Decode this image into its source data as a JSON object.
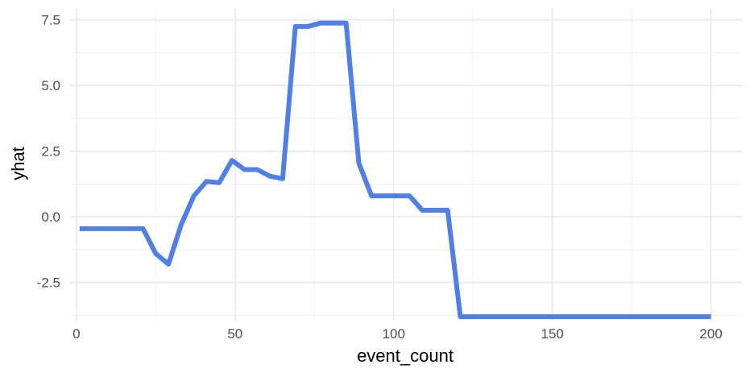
{
  "chart_data": {
    "type": "line",
    "title": "",
    "xlabel": "event_count",
    "ylabel": "yhat",
    "xlim": [
      -2,
      210
    ],
    "ylim": [
      -3.95,
      7.95
    ],
    "x_ticks": [
      0,
      50,
      100,
      150,
      200
    ],
    "x_tick_labels": [
      "0",
      "50",
      "100",
      "150",
      "200"
    ],
    "x_minor_ticks": [
      25,
      75,
      125,
      175
    ],
    "y_ticks": [
      -2.5,
      0.0,
      2.5,
      5.0,
      7.5
    ],
    "y_tick_labels": [
      "-2.5",
      "0.0",
      "2.5",
      "5.0",
      "7.5"
    ],
    "y_minor_ticks": [
      -3.75,
      -1.25,
      1.25,
      3.75,
      6.25
    ],
    "grid": true,
    "legend": "none",
    "series": [
      {
        "color": "#5080e6",
        "x": [
          1,
          5,
          9,
          13,
          17,
          21,
          25,
          29,
          33,
          37,
          41,
          45,
          49,
          53,
          57,
          61,
          65,
          69,
          73,
          77,
          81,
          85,
          89,
          93,
          97,
          101,
          105,
          109,
          113,
          117,
          121,
          125,
          130,
          140,
          150,
          160,
          170,
          180,
          190,
          200
        ],
        "y": [
          -0.45,
          -0.45,
          -0.45,
          -0.45,
          -0.45,
          -0.45,
          -1.4,
          -1.8,
          -0.3,
          0.8,
          1.35,
          1.3,
          2.15,
          1.8,
          1.8,
          1.55,
          1.45,
          7.25,
          7.25,
          7.38,
          7.38,
          7.38,
          2.05,
          0.8,
          0.8,
          0.8,
          0.8,
          0.25,
          0.25,
          0.25,
          -3.8,
          -3.8,
          -3.8,
          -3.8,
          -3.8,
          -3.8,
          -3.8,
          -3.8,
          -3.8,
          -3.8
        ]
      }
    ]
  }
}
